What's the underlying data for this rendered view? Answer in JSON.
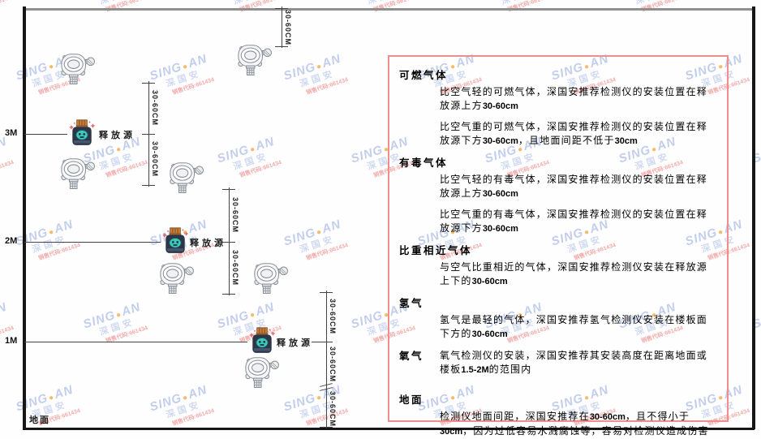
{
  "watermark": {
    "brand_left": "SING",
    "dot": "●",
    "brand_right": "AN",
    "cjk": "深国安",
    "code": "销售代码:661434"
  },
  "diagram": {
    "dim_label": "30-60CM",
    "ground_label": "地面",
    "source_label": "释放源",
    "height_labels": [
      "3M",
      "2M",
      "1M"
    ]
  },
  "panel": {
    "sections": [
      {
        "key": "flammable-gas",
        "header": "可燃气体",
        "inline": false,
        "paras": [
          "比空气轻的可燃气体，深国安推荐检测仪的安装位置在释放源上方30-60cm",
          "比空气重的可燃气体，深国安推荐检测仪的安装位置在释放源下方30-60cm，且地面间距不低于30cm"
        ]
      },
      {
        "key": "toxic-gas",
        "header": "有毒气体",
        "inline": false,
        "paras": [
          "比空气轻的有毒气体，深国安推荐检测仪的安装位置在释放源上方30-60cm",
          "比空气重的有毒气体，深国安推荐检测仪的安装位置在释放源下方30-60cm"
        ]
      },
      {
        "key": "similar-density-gas",
        "header": "比重相近气体",
        "inline": false,
        "paras": [
          "与空气比重相近的气体，深国安推荐检测仪安装在释放源上下的30-60cm"
        ]
      },
      {
        "key": "hydrogen",
        "header": "氢气",
        "inline": false,
        "paras": [
          "氢气是最轻的气体，深国安推荐氢气检测仪安装在楼板面下方的30-60cm"
        ]
      },
      {
        "key": "oxygen",
        "header": "氧气",
        "inline": true,
        "paras": [
          "氧气检测仪的安装，深国安推荐其安装高度在距离地面或楼板1.5-2M的范围内"
        ]
      },
      {
        "key": "ground",
        "header": "地面",
        "inline": false,
        "paras": [
          "检测仪地面间距，深国安推荐在30-60cm，且不得小于30cm，因为过低容易水溅腐蚀等，容易对检测仪造成伤害"
        ]
      }
    ]
  }
}
